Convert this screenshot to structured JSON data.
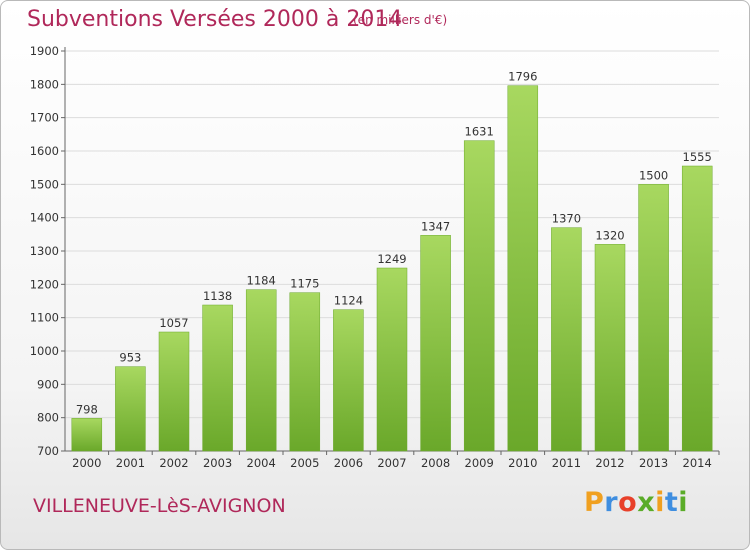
{
  "header": {
    "title": "Subventions Versées 2000 à 2014",
    "unit": "(en milliers d'€)"
  },
  "footer": {
    "commune": "VILLENEUVE-LèS-AVIGNON",
    "logo_letters": [
      "P",
      "r",
      "o",
      "x",
      "i",
      "t",
      "i"
    ],
    "logo_colors": [
      "#f0a020",
      "#3f8ee0",
      "#e8402a",
      "#5aac28",
      "#f0a020",
      "#3f8ee0",
      "#5aac28"
    ]
  },
  "colors": {
    "bar_light": "#a8d860",
    "bar_dark": "#6aa82a",
    "title": "#b0285a"
  },
  "chart_data": {
    "type": "bar",
    "title": "Subventions Versées 2000 à 2014",
    "subtitle": "(en milliers d'€)",
    "categories": [
      "2000",
      "2001",
      "2002",
      "2003",
      "2004",
      "2005",
      "2006",
      "2007",
      "2008",
      "2009",
      "2010",
      "2011",
      "2012",
      "2013",
      "2014"
    ],
    "values": [
      798,
      953,
      1057,
      1138,
      1184,
      1175,
      1124,
      1249,
      1347,
      1631,
      1796,
      1370,
      1320,
      1500,
      1555
    ],
    "ylim": [
      700,
      1900
    ],
    "yticks": [
      700,
      800,
      900,
      1000,
      1100,
      1200,
      1300,
      1400,
      1500,
      1600,
      1700,
      1800,
      1900
    ],
    "grid": true
  }
}
